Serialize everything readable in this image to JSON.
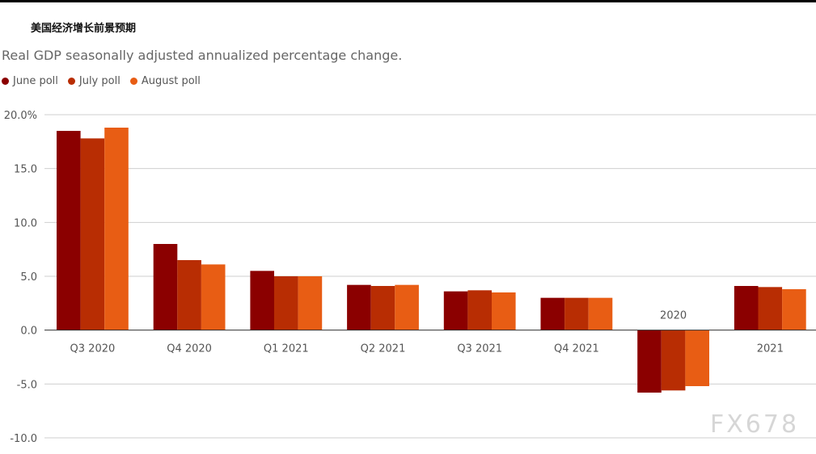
{
  "title": "美国经济增长前景预期",
  "subtitle": "Real GDP seasonally adjusted annualized percentage change.",
  "watermark": "FX678",
  "chart_data": {
    "type": "bar",
    "categories": [
      "Q3 2020",
      "Q4 2020",
      "Q1 2021",
      "Q2 2021",
      "Q3 2021",
      "Q4 2021",
      "2020",
      "2021"
    ],
    "series": [
      {
        "name": "June poll",
        "color": "#8b0000",
        "values": [
          18.5,
          8.0,
          5.5,
          4.2,
          3.6,
          3.0,
          -5.8,
          4.1
        ]
      },
      {
        "name": "July poll",
        "color": "#b82d03",
        "values": [
          17.8,
          6.5,
          5.0,
          4.1,
          3.7,
          3.0,
          -5.6,
          4.0
        ]
      },
      {
        "name": "August poll",
        "color": "#e85d14",
        "values": [
          18.8,
          6.1,
          5.0,
          4.2,
          3.5,
          3.0,
          -5.2,
          3.8
        ]
      }
    ],
    "yticks": [
      20.0,
      15.0,
      10.0,
      5.0,
      0.0,
      -5.0,
      -10.0
    ],
    "ytick_labels": [
      "20.0%",
      "15.0",
      "10.0",
      "5.0",
      "0.0",
      "-5.0",
      "-10.0"
    ],
    "ylim": [
      -10,
      20
    ],
    "xlabel": "",
    "ylabel": "",
    "grid": true,
    "legend_position": "top-left"
  }
}
